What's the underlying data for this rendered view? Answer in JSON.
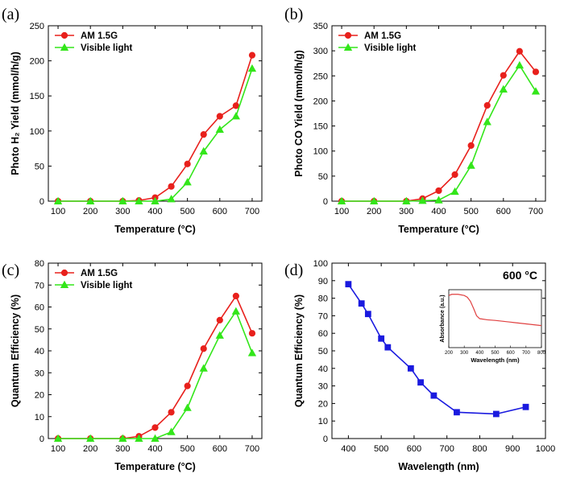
{
  "chart_data": [
    {
      "type": "line",
      "panel_label": "(a)",
      "xlabel": "Temperature (°C)",
      "ylabel": "Photo H₂ Yield (mmol/h/g)",
      "xlim": [
        70,
        730
      ],
      "ylim": [
        0,
        250
      ],
      "xticks": [
        100,
        200,
        300,
        400,
        500,
        600,
        700
      ],
      "yticks": [
        0,
        50,
        100,
        150,
        200,
        250
      ],
      "legend_position": "top-left",
      "series": [
        {
          "name": "AM 1.5G",
          "color": "#e8201c",
          "marker": "circle",
          "x": [
            100,
            200,
            300,
            350,
            400,
            450,
            500,
            550,
            600,
            650,
            700
          ],
          "y": [
            0,
            0,
            0,
            1,
            5,
            21,
            53,
            95,
            121,
            136,
            208
          ]
        },
        {
          "name": "Visible light",
          "color": "#33e61a",
          "marker": "triangle",
          "x": [
            100,
            200,
            300,
            350,
            400,
            450,
            500,
            550,
            600,
            650,
            700
          ],
          "y": [
            0,
            0,
            0,
            0,
            0,
            3,
            27,
            71,
            102,
            121,
            189
          ]
        }
      ]
    },
    {
      "type": "line",
      "panel_label": "(b)",
      "xlabel": "Temperature (°C)",
      "ylabel": "Photo CO Yield (mmol/h/g)",
      "xlim": [
        70,
        730
      ],
      "ylim": [
        0,
        350
      ],
      "xticks": [
        100,
        200,
        300,
        400,
        500,
        600,
        700
      ],
      "yticks": [
        0,
        50,
        100,
        150,
        200,
        250,
        300,
        350
      ],
      "legend_position": "top-left",
      "series": [
        {
          "name": "AM 1.5G",
          "color": "#e8201c",
          "marker": "circle",
          "x": [
            100,
            200,
            300,
            350,
            400,
            450,
            500,
            550,
            600,
            650,
            700
          ],
          "y": [
            0,
            0,
            0,
            5,
            21,
            53,
            111,
            191,
            251,
            299,
            258
          ]
        },
        {
          "name": "Visible light",
          "color": "#33e61a",
          "marker": "triangle",
          "x": [
            100,
            200,
            300,
            350,
            400,
            450,
            500,
            550,
            600,
            650,
            700
          ],
          "y": [
            0,
            0,
            0,
            1,
            2,
            19,
            71,
            158,
            223,
            271,
            219
          ]
        }
      ]
    },
    {
      "type": "line",
      "panel_label": "(c)",
      "xlabel": "Temperature (°C)",
      "ylabel": "Quantum Efficiency (%)",
      "xlim": [
        70,
        730
      ],
      "ylim": [
        0,
        80
      ],
      "xticks": [
        100,
        200,
        300,
        400,
        500,
        600,
        700
      ],
      "yticks": [
        0,
        10,
        20,
        30,
        40,
        50,
        60,
        70,
        80
      ],
      "legend_position": "top-left",
      "series": [
        {
          "name": "AM 1.5G",
          "color": "#e8201c",
          "marker": "circle",
          "x": [
            100,
            200,
            300,
            350,
            400,
            450,
            500,
            550,
            600,
            650,
            700
          ],
          "y": [
            0,
            0,
            0,
            1,
            5,
            12,
            24,
            41,
            54,
            65,
            48
          ]
        },
        {
          "name": "Visible light",
          "color": "#33e61a",
          "marker": "triangle",
          "x": [
            100,
            200,
            300,
            350,
            400,
            450,
            500,
            550,
            600,
            650,
            700
          ],
          "y": [
            0,
            0,
            0,
            0,
            0,
            3,
            14,
            32,
            47,
            58,
            39
          ]
        }
      ]
    },
    {
      "type": "line",
      "panel_label": "(d)",
      "annotation": "600 °C",
      "xlabel": "Wavelength (nm)",
      "ylabel": "Quantum Efficiency (%)",
      "xlim": [
        350,
        1000
      ],
      "ylim": [
        0,
        100
      ],
      "xticks": [
        400,
        500,
        600,
        700,
        800,
        900,
        1000
      ],
      "yticks": [
        0,
        10,
        20,
        30,
        40,
        50,
        60,
        70,
        80,
        90,
        100
      ],
      "series": [
        {
          "color": "#1a1adf",
          "marker": "square",
          "x": [
            400,
            440,
            460,
            500,
            520,
            590,
            620,
            660,
            730,
            850,
            940
          ],
          "y": [
            88,
            77,
            71,
            57,
            52,
            40,
            32,
            24.5,
            15,
            14,
            18
          ]
        }
      ],
      "inset": {
        "type": "line",
        "xlabel": "Wavelength (nm)",
        "ylabel": "Absorbance (a.u.)",
        "xlim": [
          200,
          800
        ],
        "xticks": [
          200,
          300,
          400,
          500,
          600,
          700,
          800
        ],
        "color": "#e04040",
        "x": [
          200,
          220,
          260,
          300,
          320,
          340,
          360,
          380,
          400,
          450,
          500,
          600,
          700,
          800
        ],
        "y": [
          0.9,
          0.92,
          0.92,
          0.9,
          0.87,
          0.8,
          0.68,
          0.55,
          0.5,
          0.48,
          0.47,
          0.44,
          0.41,
          0.38
        ]
      }
    }
  ]
}
